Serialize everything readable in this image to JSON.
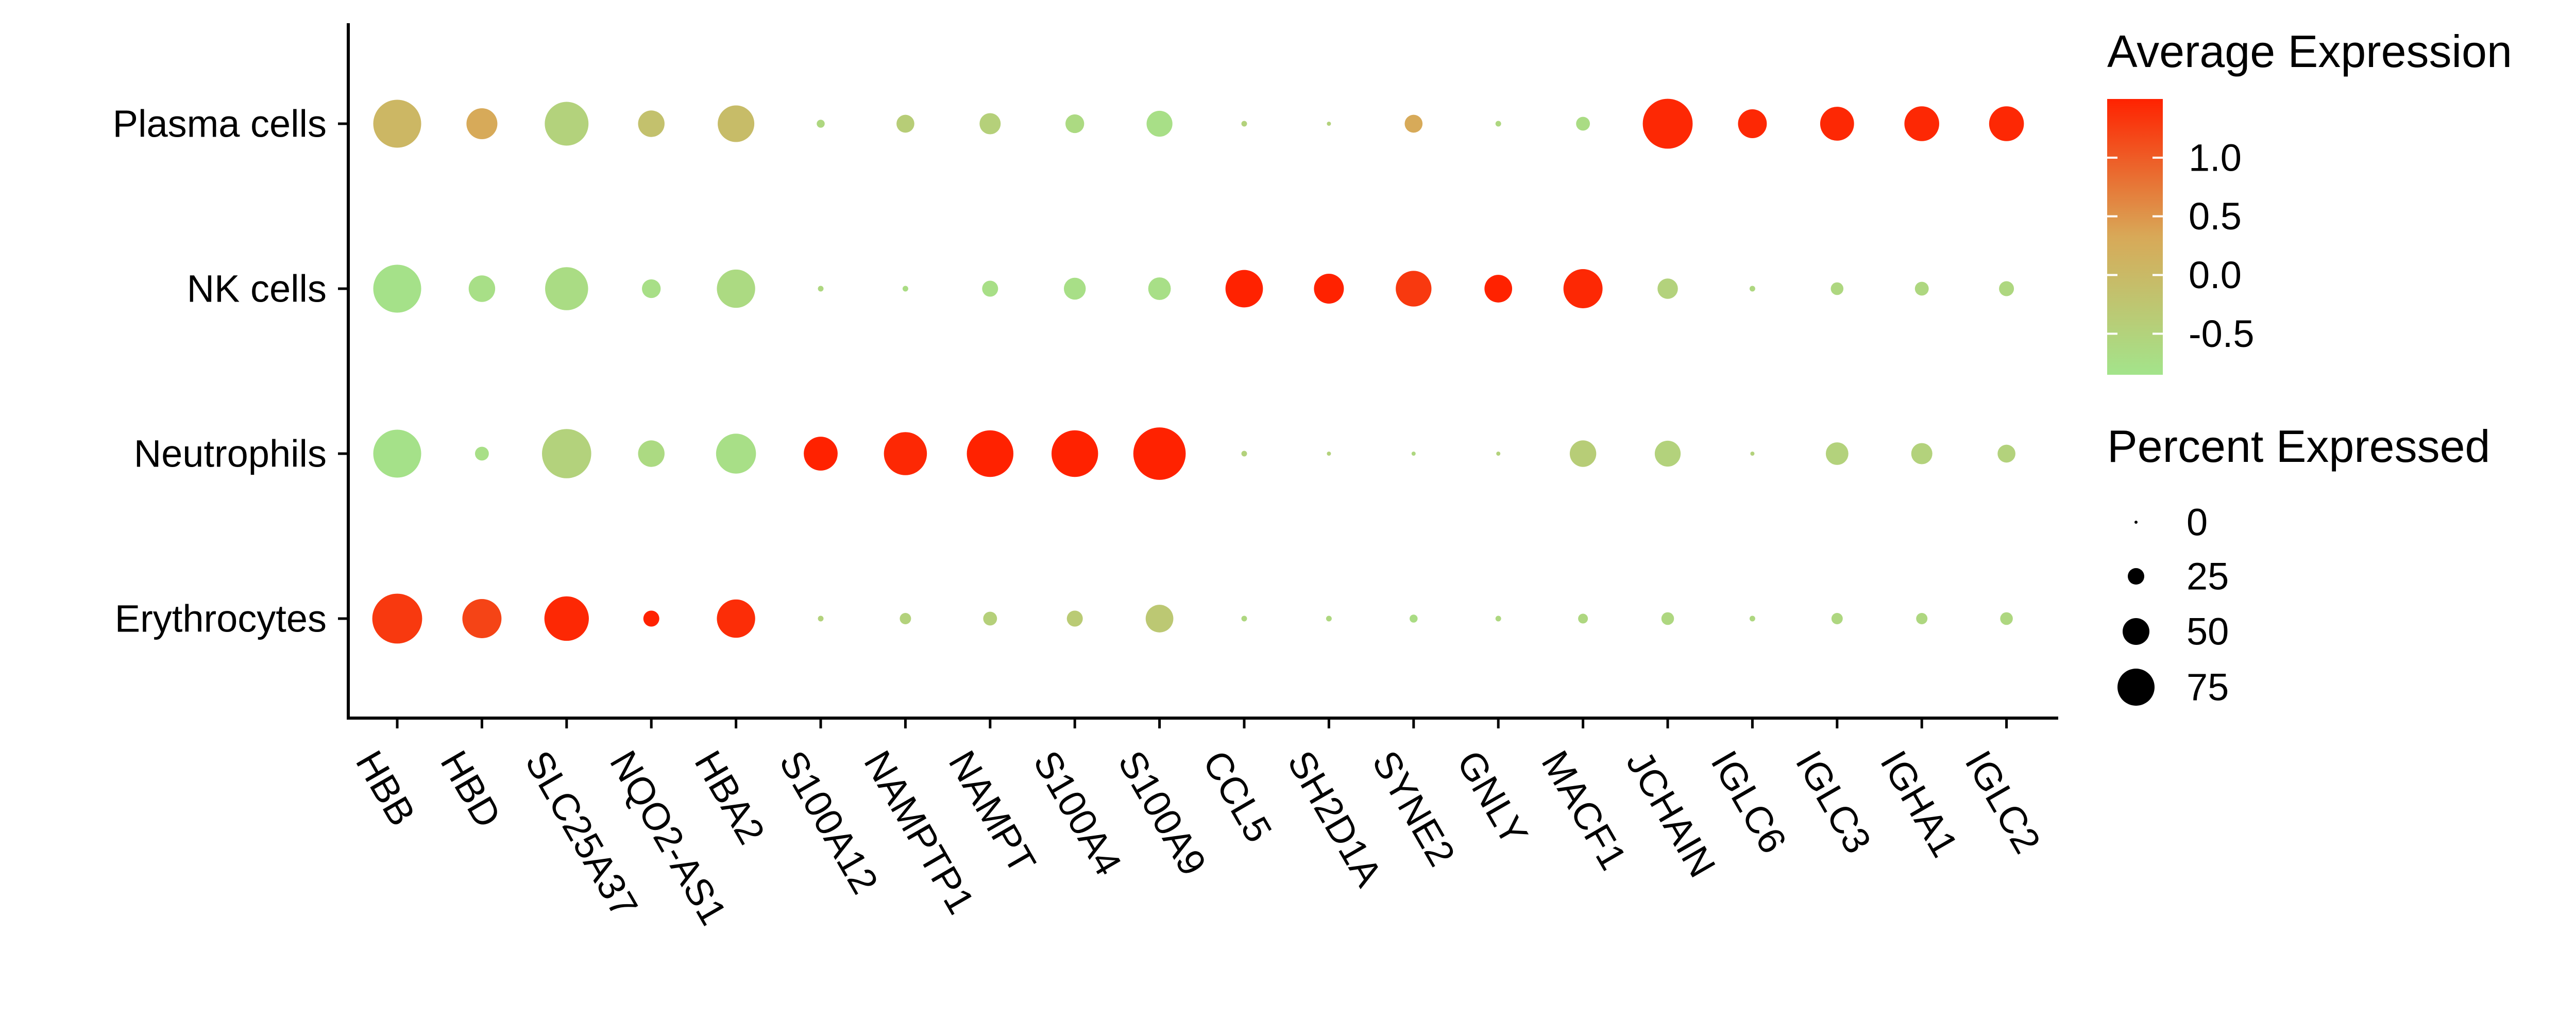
{
  "chart_data": {
    "type": "scatter",
    "subtype": "dot-plot",
    "x_categories": [
      "HBB",
      "HBD",
      "SLC25A37",
      "NQO2-AS1",
      "HBA2",
      "S100A12",
      "NAMPTP1",
      "NAMPT",
      "S100A4",
      "S100A9",
      "CCL5",
      "SH2D1A",
      "SYNE2",
      "GNLY",
      "MACF1",
      "JCHAIN",
      "IGLC6",
      "IGLC3",
      "IGHA1",
      "IGLC2"
    ],
    "y_categories": [
      "Plasma cells",
      "NK cells",
      "Neutrophils",
      "Erythrocytes"
    ],
    "x_label_rotation_deg": 60,
    "size_legend": {
      "title": "Percent Expressed",
      "values": [
        0,
        25,
        50,
        75
      ],
      "labels": [
        "0",
        "25",
        "50",
        "75"
      ]
    },
    "color_legend": {
      "title": "Average Expression",
      "range": [
        -0.85,
        1.5
      ],
      "ticks": [
        1.0,
        0.5,
        0.0,
        -0.5
      ],
      "tick_labels": [
        "1.0",
        "0.5",
        "0.0",
        "-0.5"
      ],
      "colors": {
        "low": "#a3e48b",
        "mid": "#d8a958",
        "high": "#ff2200"
      }
    },
    "legend_placement": "right",
    "grid": false,
    "points": [
      {
        "x": "HBB",
        "y": "Plasma cells",
        "pct": 72,
        "avg": 0.05
      },
      {
        "x": "HBD",
        "y": "Plasma cells",
        "pct": 30,
        "avg": 0.3
      },
      {
        "x": "SLC25A37",
        "y": "Plasma cells",
        "pct": 60,
        "avg": -0.5
      },
      {
        "x": "NQO2-AS1",
        "y": "Plasma cells",
        "pct": 22,
        "avg": -0.15
      },
      {
        "x": "HBA2",
        "y": "Plasma cells",
        "pct": 42,
        "avg": -0.05
      },
      {
        "x": "S100A12",
        "y": "Plasma cells",
        "pct": 2,
        "avg": -0.6
      },
      {
        "x": "NAMPTP1",
        "y": "Plasma cells",
        "pct": 10,
        "avg": -0.4
      },
      {
        "x": "NAMPT",
        "y": "Plasma cells",
        "pct": 14,
        "avg": -0.45
      },
      {
        "x": "S100A4",
        "y": "Plasma cells",
        "pct": 11,
        "avg": -0.65
      },
      {
        "x": "S100A9",
        "y": "Plasma cells",
        "pct": 21,
        "avg": -0.75
      },
      {
        "x": "CCL5",
        "y": "Plasma cells",
        "pct": 1,
        "avg": -0.5
      },
      {
        "x": "SH2D1A",
        "y": "Plasma cells",
        "pct": 0.5,
        "avg": -0.5
      },
      {
        "x": "SYNE2",
        "y": "Plasma cells",
        "pct": 10,
        "avg": 0.3
      },
      {
        "x": "GNLY",
        "y": "Plasma cells",
        "pct": 1,
        "avg": -0.6
      },
      {
        "x": "MACF1",
        "y": "Plasma cells",
        "pct": 6,
        "avg": -0.7
      },
      {
        "x": "JCHAIN",
        "y": "Plasma cells",
        "pct": 78,
        "avg": 1.45
      },
      {
        "x": "IGLC6",
        "y": "Plasma cells",
        "pct": 26,
        "avg": 1.45
      },
      {
        "x": "IGLC3",
        "y": "Plasma cells",
        "pct": 36,
        "avg": 1.45
      },
      {
        "x": "IGHA1",
        "y": "Plasma cells",
        "pct": 38,
        "avg": 1.45
      },
      {
        "x": "IGLC2",
        "y": "Plasma cells",
        "pct": 38,
        "avg": 1.45
      },
      {
        "x": "HBB",
        "y": "NK cells",
        "pct": 72,
        "avg": -0.8
      },
      {
        "x": "HBD",
        "y": "NK cells",
        "pct": 22,
        "avg": -0.75
      },
      {
        "x": "SLC25A37",
        "y": "NK cells",
        "pct": 58,
        "avg": -0.7
      },
      {
        "x": "NQO2-AS1",
        "y": "NK cells",
        "pct": 11,
        "avg": -0.75
      },
      {
        "x": "HBA2",
        "y": "NK cells",
        "pct": 46,
        "avg": -0.65
      },
      {
        "x": "S100A12",
        "y": "NK cells",
        "pct": 1,
        "avg": -0.6
      },
      {
        "x": "NAMPTP1",
        "y": "NK cells",
        "pct": 1,
        "avg": -0.7
      },
      {
        "x": "NAMPT",
        "y": "NK cells",
        "pct": 8,
        "avg": -0.75
      },
      {
        "x": "S100A4",
        "y": "NK cells",
        "pct": 15,
        "avg": -0.75
      },
      {
        "x": "S100A9",
        "y": "NK cells",
        "pct": 16,
        "avg": -0.75
      },
      {
        "x": "CCL5",
        "y": "NK cells",
        "pct": 44,
        "avg": 1.5
      },
      {
        "x": "SH2D1A",
        "y": "NK cells",
        "pct": 28,
        "avg": 1.5
      },
      {
        "x": "SYNE2",
        "y": "NK cells",
        "pct": 40,
        "avg": 1.3
      },
      {
        "x": "GNLY",
        "y": "NK cells",
        "pct": 24,
        "avg": 1.5
      },
      {
        "x": "MACF1",
        "y": "NK cells",
        "pct": 48,
        "avg": 1.45
      },
      {
        "x": "JCHAIN",
        "y": "NK cells",
        "pct": 13,
        "avg": -0.5
      },
      {
        "x": "IGLC6",
        "y": "NK cells",
        "pct": 1,
        "avg": -0.6
      },
      {
        "x": "IGLC3",
        "y": "NK cells",
        "pct": 5,
        "avg": -0.6
      },
      {
        "x": "IGHA1",
        "y": "NK cells",
        "pct": 6,
        "avg": -0.6
      },
      {
        "x": "IGLC2",
        "y": "NK cells",
        "pct": 7,
        "avg": -0.6
      },
      {
        "x": "HBB",
        "y": "Neutrophils",
        "pct": 72,
        "avg": -0.8
      },
      {
        "x": "HBD",
        "y": "Neutrophils",
        "pct": 6,
        "avg": -0.75
      },
      {
        "x": "SLC25A37",
        "y": "Neutrophils",
        "pct": 76,
        "avg": -0.5
      },
      {
        "x": "NQO2-AS1",
        "y": "Neutrophils",
        "pct": 22,
        "avg": -0.65
      },
      {
        "x": "HBA2",
        "y": "Neutrophils",
        "pct": 50,
        "avg": -0.75
      },
      {
        "x": "S100A12",
        "y": "Neutrophils",
        "pct": 36,
        "avg": 1.5
      },
      {
        "x": "NAMPTP1",
        "y": "Neutrophils",
        "pct": 58,
        "avg": 1.45
      },
      {
        "x": "NAMPT",
        "y": "Neutrophils",
        "pct": 68,
        "avg": 1.5
      },
      {
        "x": "S100A4",
        "y": "Neutrophils",
        "pct": 68,
        "avg": 1.5
      },
      {
        "x": "S100A9",
        "y": "Neutrophils",
        "pct": 86,
        "avg": 1.5
      },
      {
        "x": "CCL5",
        "y": "Neutrophils",
        "pct": 1,
        "avg": -0.5
      },
      {
        "x": "SH2D1A",
        "y": "Neutrophils",
        "pct": 0.5,
        "avg": -0.5
      },
      {
        "x": "SYNE2",
        "y": "Neutrophils",
        "pct": 0.5,
        "avg": -0.6
      },
      {
        "x": "GNLY",
        "y": "Neutrophils",
        "pct": 0.5,
        "avg": -0.5
      },
      {
        "x": "MACF1",
        "y": "Neutrophils",
        "pct": 22,
        "avg": -0.4
      },
      {
        "x": "JCHAIN",
        "y": "Neutrophils",
        "pct": 21,
        "avg": -0.5
      },
      {
        "x": "IGLC6",
        "y": "Neutrophils",
        "pct": 0.5,
        "avg": -0.5
      },
      {
        "x": "IGLC3",
        "y": "Neutrophils",
        "pct": 16,
        "avg": -0.5
      },
      {
        "x": "IGHA1",
        "y": "Neutrophils",
        "pct": 14,
        "avg": -0.5
      },
      {
        "x": "IGLC2",
        "y": "Neutrophils",
        "pct": 10,
        "avg": -0.5
      },
      {
        "x": "HBB",
        "y": "Erythrocytes",
        "pct": 78,
        "avg": 1.3
      },
      {
        "x": "HBD",
        "y": "Erythrocytes",
        "pct": 48,
        "avg": 1.2
      },
      {
        "x": "SLC25A37",
        "y": "Erythrocytes",
        "pct": 62,
        "avg": 1.45
      },
      {
        "x": "NQO2-AS1",
        "y": "Erythrocytes",
        "pct": 8,
        "avg": 1.5
      },
      {
        "x": "HBA2",
        "y": "Erythrocytes",
        "pct": 46,
        "avg": 1.4
      },
      {
        "x": "S100A12",
        "y": "Erythrocytes",
        "pct": 1,
        "avg": -0.5
      },
      {
        "x": "NAMPTP1",
        "y": "Erythrocytes",
        "pct": 4,
        "avg": -0.5
      },
      {
        "x": "NAMPT",
        "y": "Erythrocytes",
        "pct": 6,
        "avg": -0.45
      },
      {
        "x": "S100A4",
        "y": "Erythrocytes",
        "pct": 8,
        "avg": -0.35
      },
      {
        "x": "S100A9",
        "y": "Erythrocytes",
        "pct": 24,
        "avg": -0.3
      },
      {
        "x": "CCL5",
        "y": "Erythrocytes",
        "pct": 1,
        "avg": -0.6
      },
      {
        "x": "SH2D1A",
        "y": "Erythrocytes",
        "pct": 1,
        "avg": -0.6
      },
      {
        "x": "SYNE2",
        "y": "Erythrocytes",
        "pct": 2,
        "avg": -0.7
      },
      {
        "x": "GNLY",
        "y": "Erythrocytes",
        "pct": 1,
        "avg": -0.6
      },
      {
        "x": "MACF1",
        "y": "Erythrocytes",
        "pct": 3,
        "avg": -0.6
      },
      {
        "x": "JCHAIN",
        "y": "Erythrocytes",
        "pct": 5,
        "avg": -0.6
      },
      {
        "x": "IGLC6",
        "y": "Erythrocytes",
        "pct": 1,
        "avg": -0.6
      },
      {
        "x": "IGLC3",
        "y": "Erythrocytes",
        "pct": 4,
        "avg": -0.6
      },
      {
        "x": "IGHA1",
        "y": "Erythrocytes",
        "pct": 4,
        "avg": -0.6
      },
      {
        "x": "IGLC2",
        "y": "Erythrocytes",
        "pct": 5,
        "avg": -0.6
      }
    ]
  }
}
